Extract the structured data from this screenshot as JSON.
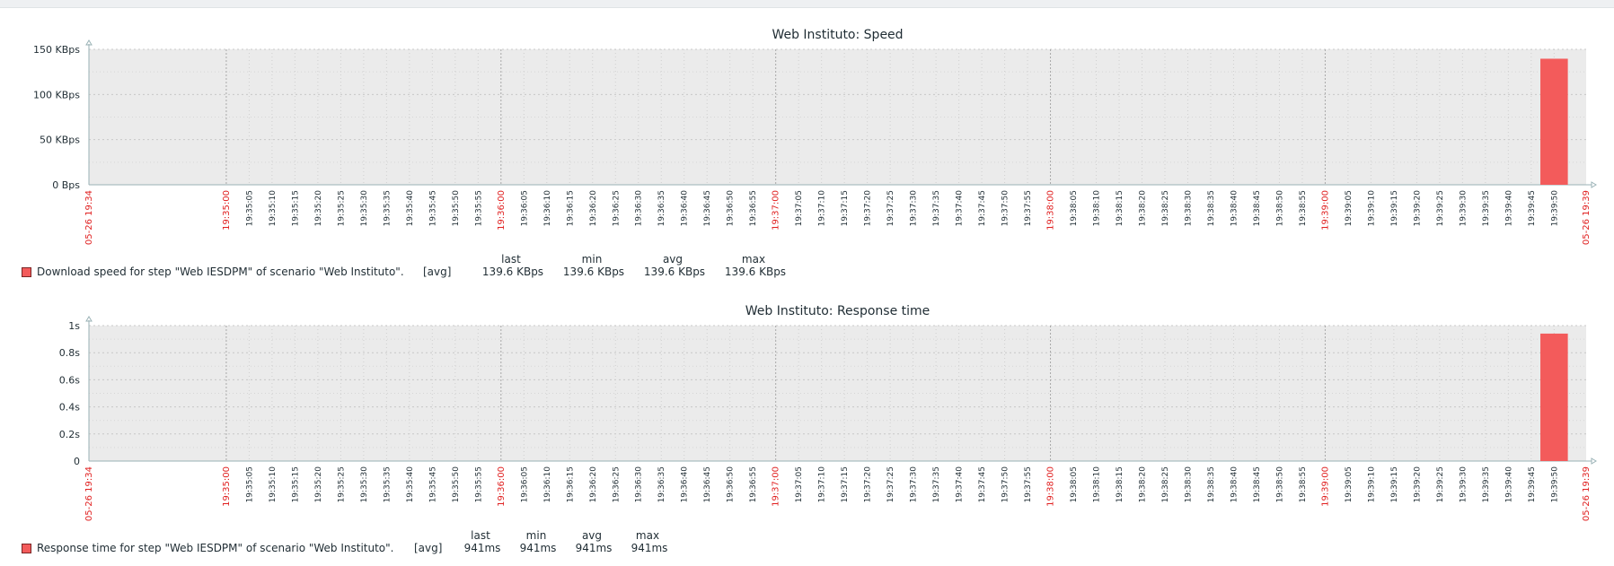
{
  "chart_data": [
    {
      "type": "bar",
      "title": "Web Instituto: Speed",
      "y_ticks": [
        "0 Bps",
        "50 KBps",
        "100 KBps",
        "150 KBps"
      ],
      "ylim": [
        0,
        150
      ],
      "x_ticks": [
        "05-26 19:34",
        "19:35:00",
        "19:35:05",
        "19:35:10",
        "19:35:15",
        "19:35:20",
        "19:35:25",
        "19:35:30",
        "19:35:35",
        "19:35:40",
        "19:35:45",
        "19:35:50",
        "19:35:55",
        "19:36:00",
        "19:36:05",
        "19:36:10",
        "19:36:15",
        "19:36:20",
        "19:36:25",
        "19:36:30",
        "19:36:35",
        "19:36:40",
        "19:36:45",
        "19:36:50",
        "19:36:55",
        "19:37:00",
        "19:37:05",
        "19:37:10",
        "19:37:15",
        "19:37:20",
        "19:37:25",
        "19:37:30",
        "19:37:35",
        "19:37:40",
        "19:37:45",
        "19:37:50",
        "19:37:55",
        "19:38:00",
        "19:38:05",
        "19:38:10",
        "19:38:15",
        "19:38:20",
        "19:38:25",
        "19:38:30",
        "19:38:35",
        "19:38:40",
        "19:38:45",
        "19:38:50",
        "19:38:55",
        "19:39:00",
        "19:39:05",
        "19:39:10",
        "19:39:15",
        "19:39:20",
        "19:39:25",
        "19:39:30",
        "19:39:35",
        "19:39:40",
        "19:39:45",
        "19:39:50",
        "05-26 19:39"
      ],
      "major_x_ticks": [
        "05-26 19:34",
        "19:35:00",
        "19:36:00",
        "19:37:00",
        "19:38:00",
        "19:39:00",
        "05-26 19:39"
      ],
      "bar": {
        "x_start": "19:39:47",
        "x_end": "19:39:53",
        "value": 139.6
      },
      "grid": true,
      "color": "#f35b5b",
      "legend": {
        "label": "Download speed for step \"Web IESDPM\" of scenario \"Web Instituto\".",
        "func": "[avg]",
        "headers": [
          "last",
          "min",
          "avg",
          "max"
        ],
        "values": [
          "139.6 KBps",
          "139.6 KBps",
          "139.6 KBps",
          "139.6 KBps"
        ]
      }
    },
    {
      "type": "bar",
      "title": "Web Instituto: Response time",
      "y_ticks": [
        "0",
        "0.2s",
        "0.4s",
        "0.6s",
        "0.8s",
        "1s"
      ],
      "ylim": [
        0,
        1
      ],
      "x_ticks": [
        "05-26 19:34",
        "19:35:00",
        "19:35:05",
        "19:35:10",
        "19:35:15",
        "19:35:20",
        "19:35:25",
        "19:35:30",
        "19:35:35",
        "19:35:40",
        "19:35:45",
        "19:35:50",
        "19:35:55",
        "19:36:00",
        "19:36:05",
        "19:36:10",
        "19:36:15",
        "19:36:20",
        "19:36:25",
        "19:36:30",
        "19:36:35",
        "19:36:40",
        "19:36:45",
        "19:36:50",
        "19:36:55",
        "19:37:00",
        "19:37:05",
        "19:37:10",
        "19:37:15",
        "19:37:20",
        "19:37:25",
        "19:37:30",
        "19:37:35",
        "19:37:40",
        "19:37:45",
        "19:37:50",
        "19:37:55",
        "19:38:00",
        "19:38:05",
        "19:38:10",
        "19:38:15",
        "19:38:20",
        "19:38:25",
        "19:38:30",
        "19:38:35",
        "19:38:40",
        "19:38:45",
        "19:38:50",
        "19:38:55",
        "19:39:00",
        "19:39:05",
        "19:39:10",
        "19:39:15",
        "19:39:20",
        "19:39:25",
        "19:39:30",
        "19:39:35",
        "19:39:40",
        "19:39:45",
        "19:39:50",
        "05-26 19:39"
      ],
      "major_x_ticks": [
        "05-26 19:34",
        "19:35:00",
        "19:36:00",
        "19:37:00",
        "19:38:00",
        "19:39:00",
        "05-26 19:39"
      ],
      "bar": {
        "x_start": "19:39:47",
        "x_end": "19:39:53",
        "value": 0.941
      },
      "grid": true,
      "color": "#f35b5b",
      "legend": {
        "label": "Response time for step \"Web IESDPM\" of scenario \"Web Instituto\".",
        "func": "[avg]",
        "headers": [
          "last",
          "min",
          "avg",
          "max"
        ],
        "values": [
          "941ms",
          "941ms",
          "941ms",
          "941ms"
        ]
      }
    }
  ]
}
